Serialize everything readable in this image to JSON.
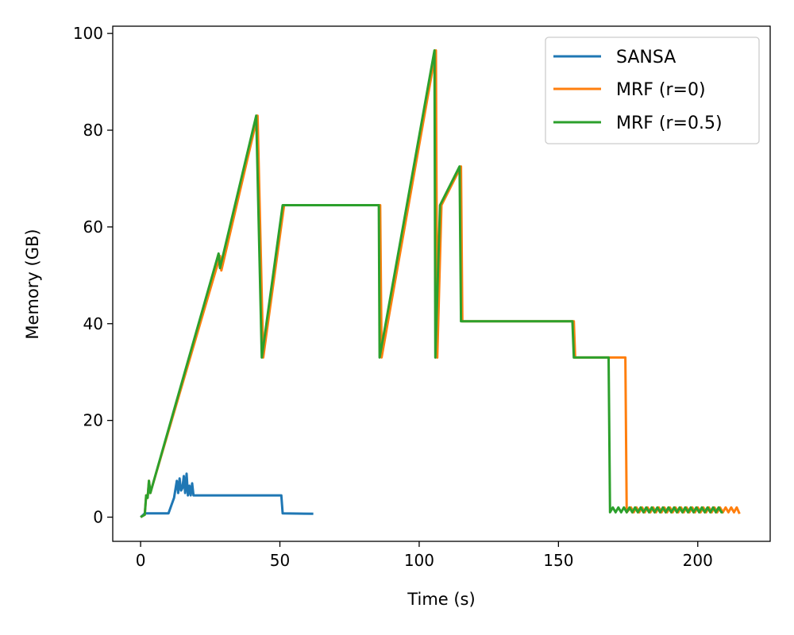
{
  "chart_data": {
    "type": "line",
    "xlabel": "Time (s)",
    "ylabel": "Memory (GB)",
    "xlim": [
      -10,
      226
    ],
    "ylim": [
      -5,
      101.5
    ],
    "xticks": [
      0,
      50,
      100,
      150,
      200
    ],
    "yticks": [
      0,
      20,
      40,
      60,
      80,
      100
    ],
    "legend_position": "top-right",
    "series": [
      {
        "name": "SANSA",
        "color": "#1f77b4",
        "x": [
          0,
          1,
          1.5,
          10,
          12,
          13,
          13.5,
          14,
          14.5,
          15,
          15.5,
          16,
          16.5,
          17,
          17.5,
          18,
          18.5,
          19,
          19.5,
          50.5,
          51,
          62
        ],
        "y": [
          0,
          0.5,
          0.8,
          0.8,
          4,
          7.5,
          5,
          8,
          5.5,
          6,
          8.5,
          5,
          9,
          4.5,
          6.5,
          4.5,
          7,
          4.5,
          4.5,
          4.5,
          0.8,
          0.7
        ]
      },
      {
        "name": "MRF (r=0)",
        "color": "#ff7f0e",
        "x": [
          0,
          1.5,
          2,
          2.5,
          3,
          3.5,
          4,
          28.5,
          29,
          42,
          44,
          51.5,
          86,
          86.5,
          106,
          106.5,
          108,
          115,
          115.5,
          155.5,
          156,
          174,
          174.5,
          176,
          177,
          178,
          179,
          180,
          181,
          182,
          183,
          184,
          185,
          186,
          187,
          188,
          189,
          190,
          191,
          192,
          193,
          194,
          195,
          196,
          197,
          198,
          199,
          200,
          201,
          202,
          203,
          204,
          205,
          206,
          207,
          208,
          209,
          210,
          211,
          212,
          213,
          214,
          215
        ],
        "y": [
          0,
          0.5,
          4.5,
          4,
          7.5,
          5,
          6,
          54,
          51,
          83,
          33,
          64.5,
          64.5,
          33,
          96.5,
          33,
          64.5,
          72.5,
          40.5,
          40.5,
          33,
          33,
          1,
          2,
          1,
          2,
          1,
          2,
          1,
          2,
          1,
          2,
          1,
          2,
          1,
          2,
          1,
          2,
          1,
          2,
          1,
          2,
          1,
          2,
          1,
          2,
          1,
          2,
          1,
          2,
          1,
          2,
          1,
          2,
          1,
          2,
          1,
          2,
          1,
          2,
          1,
          2,
          0.7
        ]
      },
      {
        "name": "MRF (r=0.5)",
        "color": "#2ca02c",
        "x": [
          0,
          1.5,
          2,
          2.5,
          3,
          3.5,
          4,
          28,
          28.5,
          41.5,
          43.5,
          51,
          85.5,
          85.8,
          105.5,
          105.8,
          107.5,
          114.5,
          115,
          155,
          155.5,
          168,
          168.5,
          169.5,
          170.5,
          171.5,
          172.5,
          173.5,
          174.5,
          175.5,
          176.5,
          177.5,
          178.5,
          179.5,
          180.5,
          181.5,
          182.5,
          183.5,
          184.5,
          185.5,
          186.5,
          187.5,
          188.5,
          189.5,
          190.5,
          191.5,
          192.5,
          193.5,
          194.5,
          195.5,
          196.5,
          197.5,
          198.5,
          199.5,
          200.5,
          201.5,
          202.5,
          203.5,
          204.5,
          205.5,
          206.5,
          207.5,
          208.5,
          209
        ],
        "y": [
          0,
          0.5,
          4.5,
          4,
          7.5,
          5,
          6,
          54.5,
          51.5,
          83,
          33,
          64.5,
          64.5,
          33,
          96.5,
          33,
          64.5,
          72.5,
          40.5,
          40.5,
          33,
          33,
          1,
          2,
          1,
          2,
          1,
          2,
          1,
          2,
          1,
          2,
          1,
          2,
          1,
          2,
          1,
          2,
          1,
          2,
          1,
          2,
          1,
          2,
          1,
          2,
          1,
          2,
          1,
          2,
          1,
          2,
          1,
          2,
          1,
          2,
          1,
          2,
          1,
          2,
          1,
          2,
          1,
          1
        ]
      }
    ]
  }
}
